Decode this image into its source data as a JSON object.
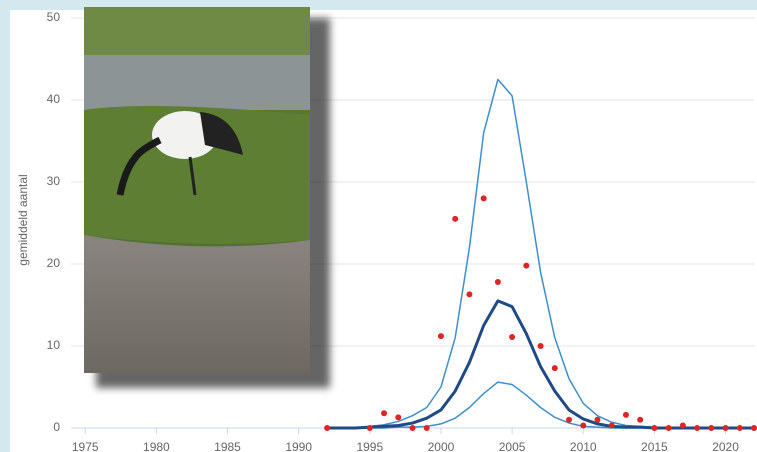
{
  "chart_data": {
    "type": "line",
    "ylabel": "gemiddeld aantal",
    "xlim": [
      1974,
      2022
    ],
    "xticks": [
      1975,
      1980,
      1985,
      1990,
      1995,
      2000,
      2005,
      2010,
      2015,
      2020
    ],
    "ylim": [
      0,
      50
    ],
    "yticks": [
      0,
      10,
      20,
      30,
      40,
      50
    ],
    "grid": true,
    "series": [
      {
        "type": "line",
        "color": "#3d8fcc",
        "width": 1.5,
        "x": [
          1992,
          1993,
          1994,
          1995,
          1996,
          1997,
          1998,
          1999,
          2000,
          2001,
          2002,
          2003,
          2004,
          2005,
          2006,
          2007,
          2008,
          2009,
          2010,
          2011,
          2012,
          2013,
          2014,
          2015,
          2016,
          2017,
          2018,
          2019,
          2020,
          2021,
          2022
        ],
        "values": [
          0,
          0,
          0,
          0.2,
          0.4,
          0.8,
          1.5,
          2.5,
          5,
          11,
          22,
          36,
          42.5,
          40.5,
          30,
          19,
          11,
          6,
          3,
          1.5,
          0.7,
          0.3,
          0.2,
          0.1,
          0,
          0,
          0,
          0,
          0,
          0,
          0
        ]
      },
      {
        "type": "line",
        "color": "#3d8fcc",
        "width": 1.5,
        "x": [
          1992,
          1993,
          1994,
          1995,
          1996,
          1997,
          1998,
          1999,
          2000,
          2001,
          2002,
          2003,
          2004,
          2005,
          2006,
          2007,
          2008,
          2009,
          2010,
          2011,
          2012,
          2013,
          2014,
          2015,
          2016,
          2017,
          2018,
          2019,
          2020,
          2021,
          2022
        ],
        "values": [
          0,
          0,
          0,
          0,
          0,
          0.1,
          0.1,
          0.2,
          0.5,
          1.2,
          2.5,
          4.2,
          5.6,
          5.3,
          4,
          2.5,
          1.3,
          0.6,
          0.2,
          0.1,
          0,
          0,
          0,
          0,
          0,
          0,
          0,
          0,
          0,
          0,
          0
        ]
      },
      {
        "type": "line",
        "color": "#1f4a85",
        "width": 3,
        "x": [
          1992,
          1993,
          1994,
          1995,
          1996,
          1997,
          1998,
          1999,
          2000,
          2001,
          2002,
          2003,
          2004,
          2005,
          2006,
          2007,
          2008,
          2009,
          2010,
          2011,
          2012,
          2013,
          2014,
          2015,
          2016,
          2017,
          2018,
          2019,
          2020,
          2021,
          2022
        ],
        "values": [
          0,
          0,
          0,
          0.1,
          0.2,
          0.3,
          0.6,
          1.2,
          2.2,
          4.5,
          8,
          12.5,
          15.5,
          14.8,
          11.5,
          7.5,
          4.5,
          2.2,
          1.1,
          0.5,
          0.2,
          0.1,
          0.1,
          0,
          0,
          0,
          0,
          0,
          0,
          0,
          0
        ]
      },
      {
        "type": "scatter",
        "color": "#e02424",
        "x": [
          1992,
          1995,
          1996,
          1997,
          1998,
          1999,
          2000,
          2001,
          2002,
          2003,
          2004,
          2005,
          2006,
          2007,
          2008,
          2009,
          2010,
          2011,
          2012,
          2013,
          2014,
          2015,
          2016,
          2017,
          2018,
          2019,
          2020,
          2021,
          2022
        ],
        "values": [
          0,
          0,
          1.8,
          1.3,
          0,
          0,
          11.2,
          25.5,
          16.3,
          28,
          17.8,
          11.1,
          19.8,
          10,
          7.3,
          1,
          0.3,
          1,
          0.3,
          1.6,
          1,
          0,
          0,
          0.3,
          0,
          0,
          0,
          0,
          0
        ]
      }
    ]
  }
}
